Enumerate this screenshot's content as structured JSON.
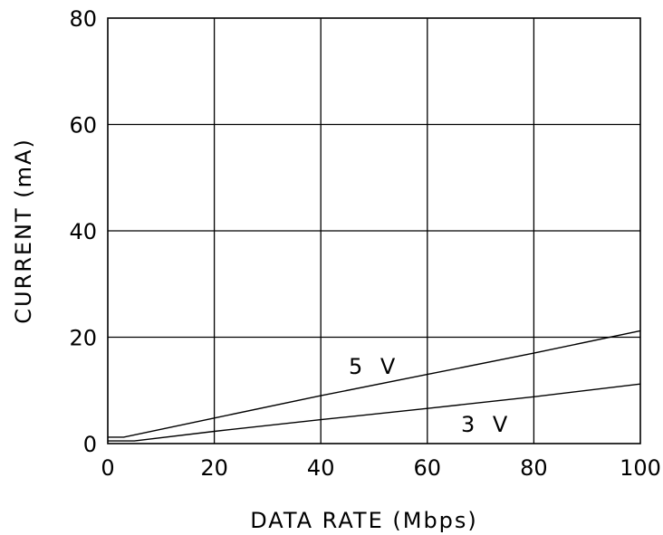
{
  "chart_data": {
    "type": "line",
    "xlabel": "DATA RATE (Mbps)",
    "ylabel": "CURRENT (mA)",
    "xlim": [
      0,
      100
    ],
    "ylim": [
      0,
      80
    ],
    "x_ticks": [
      0,
      20,
      40,
      60,
      80,
      100
    ],
    "y_ticks": [
      0,
      20,
      40,
      60,
      80
    ],
    "grid": true,
    "series": [
      {
        "name": "5 V",
        "x": [
          0,
          3,
          20,
          40,
          60,
          80,
          100
        ],
        "y": [
          1.2,
          1.2,
          4.8,
          9.0,
          13.0,
          17.0,
          21.2
        ]
      },
      {
        "name": "3 V",
        "x": [
          0,
          5,
          20,
          40,
          60,
          80,
          100
        ],
        "y": [
          0.5,
          0.5,
          2.3,
          4.5,
          6.6,
          8.8,
          11.2
        ]
      }
    ]
  }
}
